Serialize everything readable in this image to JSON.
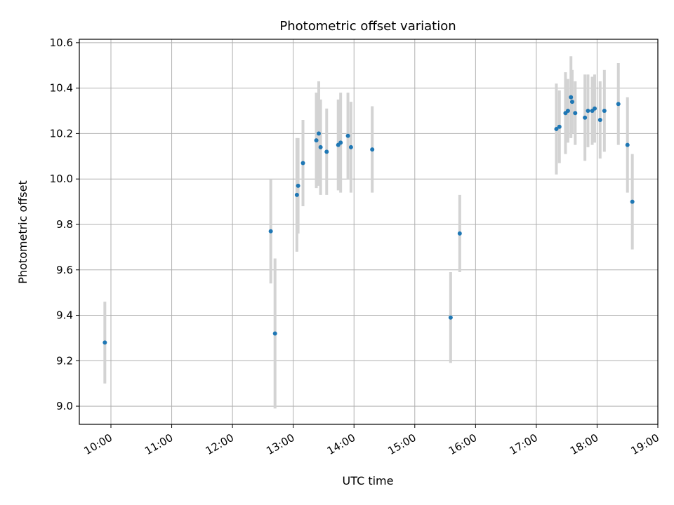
{
  "chart_data": {
    "type": "scatter",
    "title": "Photometric offset variation",
    "xlabel": "UTC time",
    "ylabel": "Photometric offset",
    "x_unit": "hours UTC",
    "xlim": [
      9.48,
      19.0
    ],
    "ylim": [
      8.92,
      10.615
    ],
    "grid": true,
    "legend": "none",
    "x_ticks": [
      {
        "value": 10,
        "label": "10:00"
      },
      {
        "value": 11,
        "label": "11:00"
      },
      {
        "value": 12,
        "label": "12:00"
      },
      {
        "value": 13,
        "label": "13:00"
      },
      {
        "value": 14,
        "label": "14:00"
      },
      {
        "value": 15,
        "label": "15:00"
      },
      {
        "value": 16,
        "label": "16:00"
      },
      {
        "value": 17,
        "label": "17:00"
      },
      {
        "value": 18,
        "label": "18:00"
      },
      {
        "value": 19,
        "label": "19:00"
      }
    ],
    "y_ticks": [
      {
        "value": 9.0,
        "label": "9.0"
      },
      {
        "value": 9.2,
        "label": "9.2"
      },
      {
        "value": 9.4,
        "label": "9.4"
      },
      {
        "value": 9.6,
        "label": "9.6"
      },
      {
        "value": 9.8,
        "label": "9.8"
      },
      {
        "value": 10.0,
        "label": "10.0"
      },
      {
        "value": 10.2,
        "label": "10.2"
      },
      {
        "value": 10.4,
        "label": "10.4"
      },
      {
        "value": 10.6,
        "label": "10.6"
      }
    ],
    "colors": {
      "point": "#1f77b4",
      "errorbar": "#d3d3d3",
      "grid": "#b0b0b0"
    },
    "points": [
      {
        "x": 9.9,
        "y": 9.28,
        "err": 0.18
      },
      {
        "x": 12.63,
        "y": 9.77,
        "err": 0.23
      },
      {
        "x": 12.7,
        "y": 9.32,
        "err": 0.33
      },
      {
        "x": 13.06,
        "y": 9.93,
        "err": 0.25
      },
      {
        "x": 13.08,
        "y": 9.97,
        "err": 0.21
      },
      {
        "x": 13.16,
        "y": 10.07,
        "err": 0.19
      },
      {
        "x": 13.38,
        "y": 10.17,
        "err": 0.21
      },
      {
        "x": 13.42,
        "y": 10.2,
        "err": 0.23
      },
      {
        "x": 13.45,
        "y": 10.14,
        "err": 0.21
      },
      {
        "x": 13.55,
        "y": 10.12,
        "err": 0.19
      },
      {
        "x": 13.74,
        "y": 10.15,
        "err": 0.2
      },
      {
        "x": 13.78,
        "y": 10.16,
        "err": 0.22
      },
      {
        "x": 13.9,
        "y": 10.19,
        "err": 0.19
      },
      {
        "x": 13.95,
        "y": 10.14,
        "err": 0.2
      },
      {
        "x": 14.3,
        "y": 10.13,
        "err": 0.19
      },
      {
        "x": 15.59,
        "y": 9.39,
        "err": 0.2
      },
      {
        "x": 15.74,
        "y": 9.76,
        "err": 0.17
      },
      {
        "x": 17.33,
        "y": 10.22,
        "err": 0.2
      },
      {
        "x": 17.38,
        "y": 10.23,
        "err": 0.16
      },
      {
        "x": 17.48,
        "y": 10.29,
        "err": 0.18
      },
      {
        "x": 17.52,
        "y": 10.3,
        "err": 0.14
      },
      {
        "x": 17.57,
        "y": 10.36,
        "err": 0.18
      },
      {
        "x": 17.59,
        "y": 10.34,
        "err": 0.14
      },
      {
        "x": 17.64,
        "y": 10.29,
        "err": 0.14
      },
      {
        "x": 17.8,
        "y": 10.27,
        "err": 0.19
      },
      {
        "x": 17.85,
        "y": 10.3,
        "err": 0.16
      },
      {
        "x": 17.92,
        "y": 10.3,
        "err": 0.15
      },
      {
        "x": 17.96,
        "y": 10.31,
        "err": 0.15
      },
      {
        "x": 18.05,
        "y": 10.26,
        "err": 0.17
      },
      {
        "x": 18.12,
        "y": 10.3,
        "err": 0.18
      },
      {
        "x": 18.35,
        "y": 10.33,
        "err": 0.18
      },
      {
        "x": 18.5,
        "y": 10.15,
        "err": 0.21
      },
      {
        "x": 18.58,
        "y": 9.9,
        "err": 0.21
      }
    ]
  }
}
